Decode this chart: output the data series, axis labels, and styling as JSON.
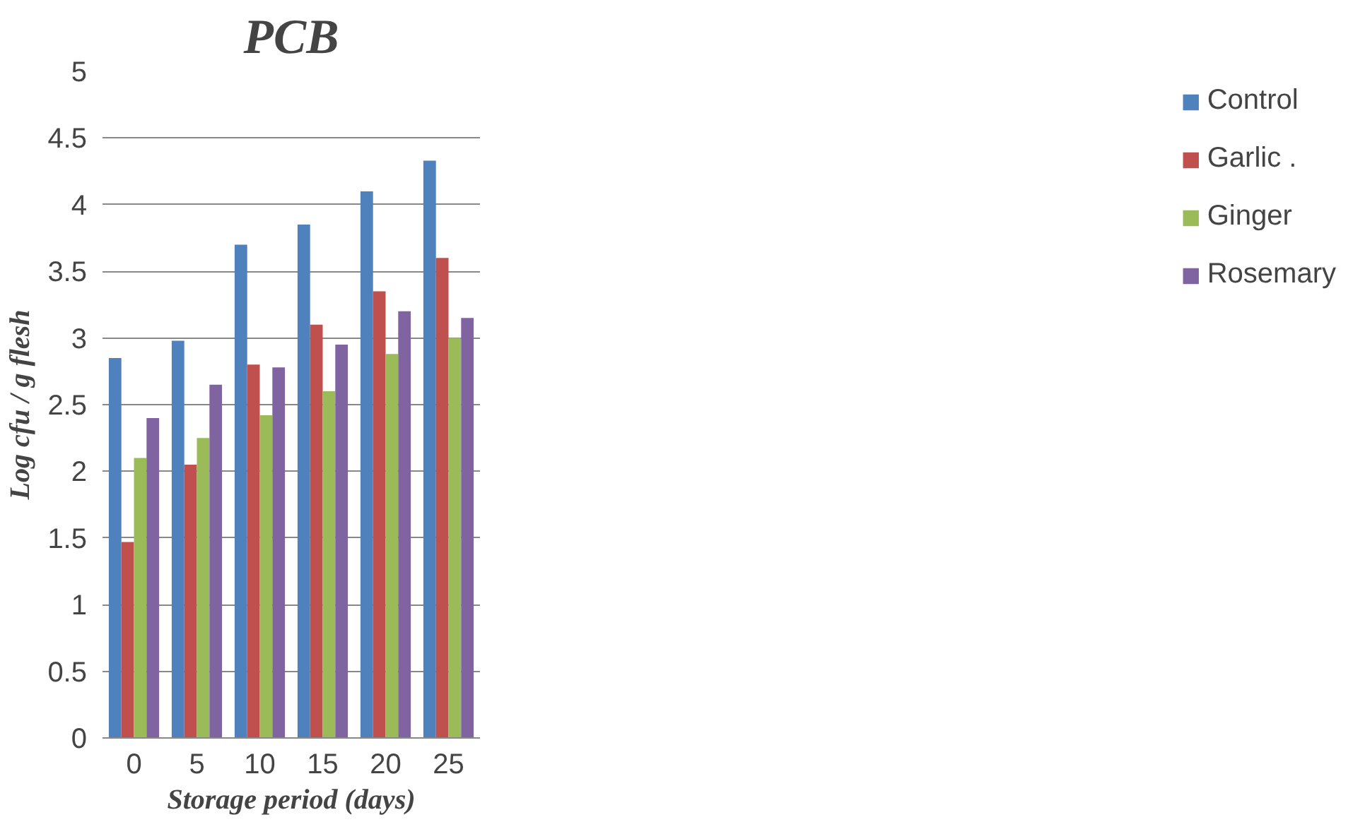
{
  "chart_data": {
    "type": "bar",
    "title": "PCB",
    "xlabel": "Storage period (days)",
    "ylabel": "Log cfu / g flesh",
    "categories": [
      "0",
      "5",
      "10",
      "15",
      "20",
      "25"
    ],
    "series": [
      {
        "name": "Control",
        "color": "#4f81bd",
        "values": [
          2.85,
          2.98,
          3.7,
          3.85,
          4.1,
          4.33
        ]
      },
      {
        "name": "Garlic .",
        "color": "#c0504d",
        "values": [
          1.47,
          2.05,
          2.8,
          3.1,
          3.35,
          3.6
        ]
      },
      {
        "name": "Ginger",
        "color": "#9bbb59",
        "values": [
          2.1,
          2.25,
          2.42,
          2.6,
          2.88,
          3.0
        ]
      },
      {
        "name": "Rosemary",
        "color": "#8064a2",
        "values": [
          2.4,
          2.65,
          2.78,
          2.95,
          3.2,
          3.15
        ]
      }
    ],
    "ylim": [
      0,
      5
    ],
    "yticks": [
      0,
      0.5,
      1,
      1.5,
      2,
      2.5,
      3,
      3.5,
      4,
      4.5,
      5
    ],
    "grid": "y",
    "legend": "right"
  }
}
